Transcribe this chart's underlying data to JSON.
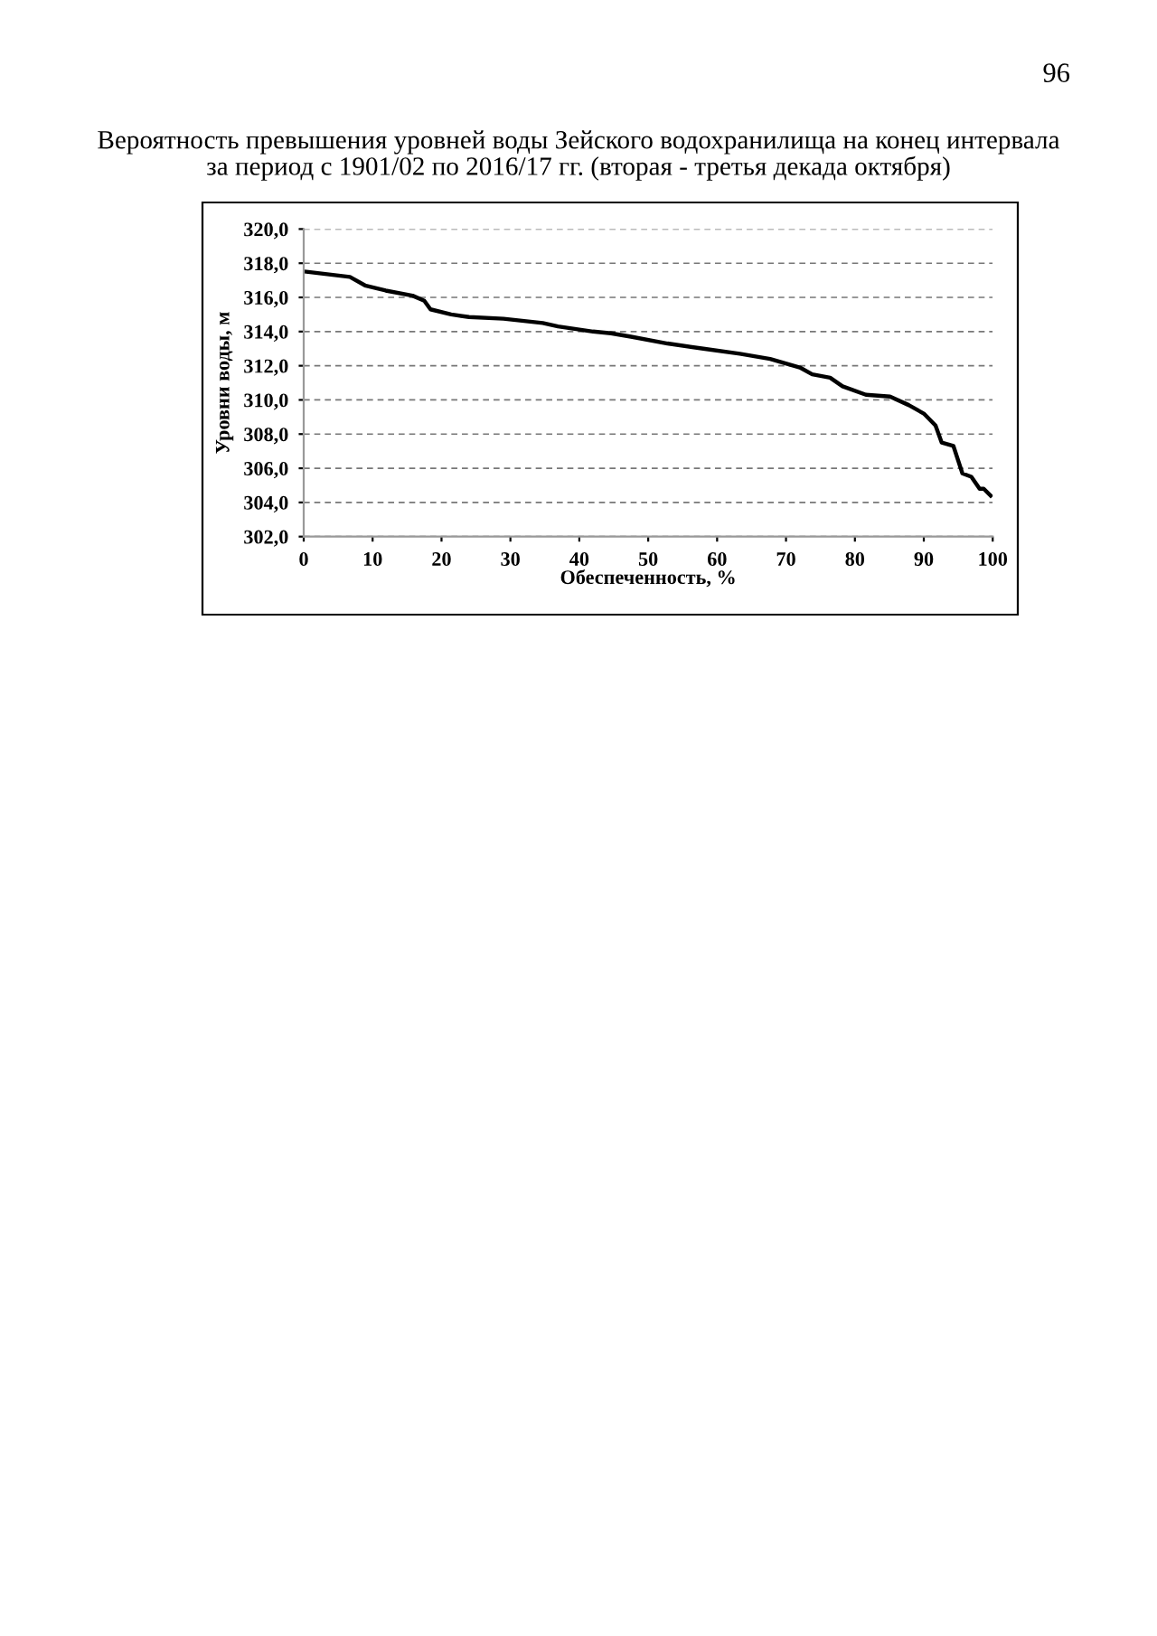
{
  "chart_data": {
    "type": "line",
    "title": "Вероятность превышения уровней воды Зейского водохранилища на конец интервала\nза период с 1901/02 по 2016/17 гг. (вторая - третья декада октября)",
    "xlabel": "Обеспеченность, %",
    "ylabel": "Уровни воды, м",
    "annotations": [
      "96"
    ],
    "series": [
      {
        "color": "#000000",
        "x": [
          0.4,
          6.7,
          8.9,
          11.9,
          15.8,
          17.5,
          18.4,
          21.4,
          24,
          29,
          34.7,
          36.9,
          42,
          44.6,
          47.5,
          52.8,
          58,
          63.3,
          67.7,
          72,
          73.8,
          76.4,
          78.2,
          81.6,
          85.1,
          87.8,
          90,
          91.7,
          92.6,
          94.3,
          95.6,
          96.9,
          98.1,
          98.7,
          99.7
        ],
        "values": [
          317.5,
          317.2,
          316.7,
          316.4,
          316.1,
          315.8,
          315.3,
          315.0,
          314.85,
          314.75,
          314.5,
          314.3,
          314.0,
          313.9,
          313.7,
          313.3,
          313.0,
          312.7,
          312.4,
          311.9,
          311.5,
          311.3,
          310.8,
          310.3,
          310.2,
          309.7,
          309.2,
          308.5,
          307.5,
          307.3,
          305.7,
          305.5,
          304.8,
          304.8,
          304.4
        ]
      }
    ],
    "xlim": [
      0,
      100
    ],
    "xticks": [
      0,
      10,
      20,
      30,
      40,
      50,
      60,
      70,
      80,
      90,
      100
    ],
    "ylim": [
      302,
      320
    ],
    "yticks": [
      {
        "value": 302,
        "label": "302,0"
      },
      {
        "value": 304,
        "label": "304,0"
      },
      {
        "value": 306,
        "label": "306,0"
      },
      {
        "value": 308,
        "label": "308,0"
      },
      {
        "value": 310,
        "label": "310,0"
      },
      {
        "value": 312,
        "label": "312,0"
      },
      {
        "value": 314,
        "label": "314,0"
      },
      {
        "value": 316,
        "label": "316,0"
      },
      {
        "value": 318,
        "label": "318,0"
      },
      {
        "value": 320,
        "label": "320,0"
      }
    ],
    "grid": "y",
    "line_style": "solid",
    "marker": "none"
  }
}
